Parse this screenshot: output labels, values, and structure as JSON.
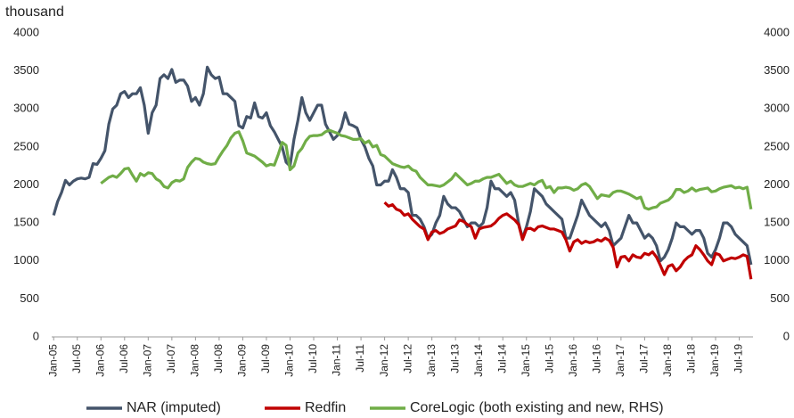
{
  "chart_data": {
    "type": "line",
    "y_label": "thousand",
    "categories": [
      "Jan-05",
      null,
      null,
      null,
      null,
      null,
      "Jul-05",
      null,
      null,
      null,
      null,
      null,
      "Jan-06",
      null,
      null,
      null,
      null,
      null,
      "Jul-06",
      null,
      null,
      null,
      null,
      null,
      "Jan-07",
      null,
      null,
      null,
      null,
      null,
      "Jul-07",
      null,
      null,
      null,
      null,
      null,
      "Jan-08",
      null,
      null,
      null,
      null,
      null,
      "Jul-08",
      null,
      null,
      null,
      null,
      null,
      "Jan-09",
      null,
      null,
      null,
      null,
      null,
      "Jul-09",
      null,
      null,
      null,
      null,
      null,
      "Jan-10",
      null,
      null,
      null,
      null,
      null,
      "Jul-10",
      null,
      null,
      null,
      null,
      null,
      "Jan-11",
      null,
      null,
      null,
      null,
      null,
      "Jul-11",
      null,
      null,
      null,
      null,
      null,
      "Jan-12",
      null,
      null,
      null,
      null,
      null,
      "Jul-12",
      null,
      null,
      null,
      null,
      null,
      "Jan-13",
      null,
      null,
      null,
      null,
      null,
      "Jul-13",
      null,
      null,
      null,
      null,
      null,
      "Jan-14",
      null,
      null,
      null,
      null,
      null,
      "Jul-14",
      null,
      null,
      null,
      null,
      null,
      "Jan-15",
      null,
      null,
      null,
      null,
      null,
      "Jul-15",
      null,
      null,
      null,
      null,
      null,
      "Jan-16",
      null,
      null,
      null,
      null,
      null,
      "Jul-16",
      null,
      null,
      null,
      null,
      null,
      "Jan-17",
      null,
      null,
      null,
      null,
      null,
      "Jul-17",
      null,
      null,
      null,
      null,
      null,
      "Jan-18",
      null,
      null,
      null,
      null,
      null,
      "Jul-18",
      null,
      null,
      null,
      null,
      null,
      "Jan-19",
      null,
      null,
      null,
      null,
      null,
      "Jul-19",
      null,
      null,
      null
    ],
    "series": [
      {
        "name": "NAR (imputed)",
        "color": "#44546a",
        "values": [
          1600,
          1780,
          1900,
          2060,
          2000,
          2050,
          2080,
          2090,
          2080,
          2100,
          2280,
          2270,
          2350,
          2450,
          2800,
          3000,
          3050,
          3200,
          3230,
          3150,
          3200,
          3200,
          3280,
          3050,
          2680,
          2950,
          3050,
          3400,
          3450,
          3400,
          3520,
          3350,
          3380,
          3380,
          3300,
          3100,
          3150,
          3050,
          3200,
          3550,
          3450,
          3400,
          3420,
          3200,
          3200,
          3150,
          3100,
          2780,
          2750,
          2900,
          2880,
          3080,
          2900,
          2880,
          2950,
          2780,
          2700,
          2600,
          2500,
          2300,
          2250,
          2600,
          2850,
          3150,
          2950,
          2850,
          2950,
          3050,
          3050,
          2800,
          2700,
          2600,
          2650,
          2750,
          2950,
          2800,
          2780,
          2750,
          2600,
          2500,
          2350,
          2250,
          2000,
          2000,
          2050,
          2050,
          2200,
          2100,
          1950,
          1950,
          1900,
          1600,
          1600,
          1550,
          1450,
          1300,
          1350,
          1500,
          1600,
          1850,
          1750,
          1700,
          1700,
          1650,
          1550,
          1450,
          1500,
          1500,
          1450,
          1500,
          1700,
          2050,
          1950,
          1950,
          1900,
          1850,
          1900,
          1800,
          1500,
          1300,
          1450,
          1650,
          1950,
          1900,
          1850,
          1750,
          1700,
          1650,
          1600,
          1550,
          1300,
          1300,
          1450,
          1600,
          1800,
          1700,
          1600,
          1550,
          1500,
          1450,
          1500,
          1400,
          1200,
          1250,
          1300,
          1450,
          1600,
          1500,
          1500,
          1400,
          1300,
          1350,
          1300,
          1200,
          1000,
          1050,
          1150,
          1300,
          1500,
          1450,
          1450,
          1400,
          1350,
          1400,
          1400,
          1300,
          1100,
          1050,
          1150,
          1300,
          1500,
          1500,
          1450,
          1350,
          1300,
          1250,
          1200,
          950
        ]
      },
      {
        "name": "Redfin",
        "color": "#c00000",
        "values": [
          null,
          null,
          null,
          null,
          null,
          null,
          null,
          null,
          null,
          null,
          null,
          null,
          null,
          null,
          null,
          null,
          null,
          null,
          null,
          null,
          null,
          null,
          null,
          null,
          null,
          null,
          null,
          null,
          null,
          null,
          null,
          null,
          null,
          null,
          null,
          null,
          null,
          null,
          null,
          null,
          null,
          null,
          null,
          null,
          null,
          null,
          null,
          null,
          null,
          null,
          null,
          null,
          null,
          null,
          null,
          null,
          null,
          null,
          null,
          null,
          null,
          null,
          null,
          null,
          null,
          null,
          null,
          null,
          null,
          null,
          null,
          null,
          null,
          null,
          null,
          null,
          null,
          null,
          null,
          null,
          null,
          null,
          null,
          null,
          1770,
          1720,
          1740,
          1680,
          1660,
          1600,
          1620,
          1550,
          1500,
          1450,
          1420,
          1280,
          1380,
          1400,
          1360,
          1380,
          1420,
          1440,
          1460,
          1540,
          1520,
          1480,
          1450,
          1300,
          1420,
          1440,
          1450,
          1460,
          1500,
          1560,
          1600,
          1620,
          1580,
          1540,
          1480,
          1280,
          1420,
          1430,
          1400,
          1450,
          1460,
          1440,
          1420,
          1420,
          1400,
          1380,
          1280,
          1130,
          1250,
          1280,
          1230,
          1260,
          1240,
          1250,
          1280,
          1260,
          1300,
          1270,
          1180,
          920,
          1050,
          1060,
          1000,
          1080,
          1050,
          1040,
          1100,
          1080,
          1120,
          1050,
          940,
          820,
          930,
          950,
          870,
          920,
          1000,
          1050,
          1080,
          1200,
          1150,
          1080,
          1000,
          950,
          1100,
          1080,
          1000,
          1020,
          1040,
          1030,
          1050,
          1080,
          1060,
          760
        ]
      },
      {
        "name": "CoreLogic (both existing and new, RHS)",
        "color": "#70ad47",
        "axis": "y2",
        "values": [
          null,
          null,
          null,
          null,
          null,
          null,
          null,
          null,
          null,
          null,
          null,
          null,
          2020,
          2060,
          2100,
          2120,
          2100,
          2150,
          2210,
          2220,
          2130,
          2050,
          2150,
          2120,
          2160,
          2150,
          2080,
          2050,
          1980,
          1960,
          2030,
          2060,
          2050,
          2080,
          2230,
          2300,
          2350,
          2340,
          2300,
          2280,
          2270,
          2280,
          2370,
          2450,
          2520,
          2620,
          2680,
          2700,
          2580,
          2420,
          2400,
          2380,
          2340,
          2300,
          2250,
          2270,
          2260,
          2400,
          2560,
          2520,
          2200,
          2250,
          2420,
          2480,
          2580,
          2640,
          2650,
          2650,
          2660,
          2700,
          2720,
          2700,
          2680,
          2650,
          2640,
          2620,
          2600,
          2600,
          2610,
          2550,
          2580,
          2500,
          2520,
          2400,
          2380,
          2330,
          2280,
          2260,
          2240,
          2230,
          2250,
          2200,
          2180,
          2100,
          2050,
          2000,
          2000,
          1990,
          1980,
          2000,
          2040,
          2080,
          2150,
          2100,
          2050,
          2000,
          2020,
          2050,
          2050,
          2080,
          2100,
          2100,
          2120,
          2140,
          2080,
          2020,
          2050,
          2000,
          1980,
          1980,
          2000,
          2020,
          2000,
          2040,
          2060,
          1960,
          1980,
          1900,
          1960,
          1960,
          1970,
          1960,
          1930,
          1950,
          2000,
          2020,
          1980,
          1900,
          1820,
          1870,
          1860,
          1850,
          1900,
          1920,
          1920,
          1900,
          1880,
          1850,
          1820,
          1840,
          1700,
          1680,
          1700,
          1710,
          1760,
          1780,
          1800,
          1850,
          1940,
          1940,
          1900,
          1920,
          1960,
          1920,
          1940,
          1950,
          1960,
          1910,
          1920,
          1950,
          1970,
          1980,
          1990,
          1960,
          1970,
          1950,
          1970,
          1680
        ]
      }
    ],
    "ylim": [
      0,
      4000
    ],
    "yticks": [
      0,
      500,
      1000,
      1500,
      2000,
      2500,
      3000,
      3500,
      4000
    ],
    "y2lim": [
      0,
      4000
    ],
    "y2ticks": [
      0,
      500,
      1000,
      1500,
      2000,
      2500,
      3000,
      3500,
      4000
    ],
    "grid": false
  }
}
